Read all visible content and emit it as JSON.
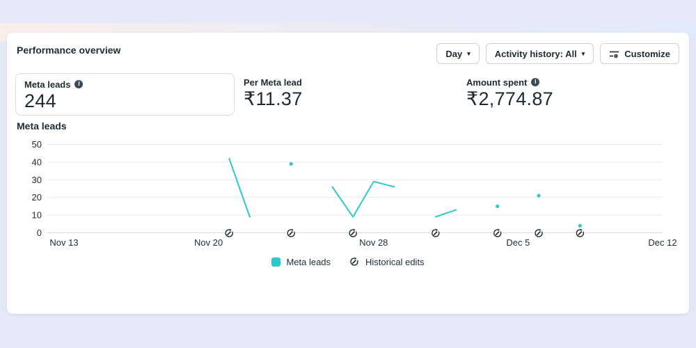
{
  "header": {
    "title": "Performance overview",
    "controls": {
      "time_breakdown": "Day",
      "activity_history": "Activity history: All",
      "customize": "Customize"
    }
  },
  "metrics": [
    {
      "label": "Meta leads",
      "value": "244",
      "has_info": true,
      "selected": true
    },
    {
      "label": "Per Meta lead",
      "value": "₹11.37",
      "has_info": false
    },
    {
      "label": "Amount spent",
      "value": "₹2,774.87",
      "has_info": true
    }
  ],
  "chart_data": {
    "type": "line",
    "title": "Meta leads",
    "ylabel": "",
    "ylim": [
      0,
      50
    ],
    "yticks": [
      0,
      10,
      20,
      30,
      40,
      50
    ],
    "grid": true,
    "x_tick_labels": [
      "Nov 13",
      "Nov 20",
      "Nov 28",
      "Dec 5",
      "Dec 12"
    ],
    "x_tick_days": [
      0,
      7,
      15,
      22,
      29
    ],
    "x_range_days": 29,
    "series_name": "Meta leads",
    "line_color": "#2bc9c9",
    "segments": [
      {
        "points": [
          {
            "date": "Nov 21",
            "day": 8,
            "value": 42
          },
          {
            "date": "Nov 22",
            "day": 9,
            "value": 9
          }
        ]
      },
      {
        "points": [
          {
            "date": "Nov 26",
            "day": 13,
            "value": 26
          },
          {
            "date": "Nov 27",
            "day": 14,
            "value": 9
          },
          {
            "date": "Nov 28",
            "day": 15,
            "value": 29
          },
          {
            "date": "Nov 29",
            "day": 16,
            "value": 26
          }
        ]
      },
      {
        "points": [
          {
            "date": "Dec 1",
            "day": 18,
            "value": 9
          },
          {
            "date": "Dec 2",
            "day": 19,
            "value": 13
          }
        ]
      }
    ],
    "isolated_points": [
      {
        "date": "Nov 24",
        "day": 11,
        "value": 39
      },
      {
        "date": "Dec 4",
        "day": 21,
        "value": 15
      },
      {
        "date": "Dec 6",
        "day": 23,
        "value": 21
      },
      {
        "date": "Dec 8",
        "day": 25,
        "value": 4
      }
    ],
    "historical_edits": [
      {
        "date": "Nov 21",
        "day": 8
      },
      {
        "date": "Nov 24",
        "day": 11
      },
      {
        "date": "Nov 27",
        "day": 14
      },
      {
        "date": "Dec 1",
        "day": 18
      },
      {
        "date": "Dec 4",
        "day": 21
      },
      {
        "date": "Dec 6",
        "day": 23
      },
      {
        "date": "Dec 8",
        "day": 25
      }
    ],
    "legend": [
      "Meta leads",
      "Historical edits"
    ]
  },
  "colors": {
    "accent_teal": "#2bc9c9",
    "text_dark": "#1c2b33",
    "gridline": "#e7e9ec",
    "axis_line": "#d7dade",
    "card_border": "#d8dce0",
    "button_border": "#ccd1d6",
    "page_background": "#e5e8f6"
  }
}
